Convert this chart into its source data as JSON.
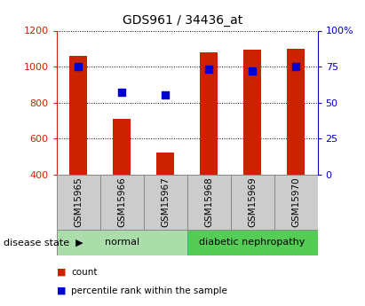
{
  "title": "GDS961 / 34436_at",
  "samples": [
    "GSM15965",
    "GSM15966",
    "GSM15967",
    "GSM15968",
    "GSM15969",
    "GSM15970"
  ],
  "counts": [
    1060,
    710,
    520,
    1080,
    1095,
    1100
  ],
  "percentiles": [
    75,
    57,
    55,
    73,
    72,
    75
  ],
  "ylim_left": [
    400,
    1200
  ],
  "ylim_right": [
    0,
    100
  ],
  "yticks_left": [
    400,
    600,
    800,
    1000,
    1200
  ],
  "yticks_right": [
    0,
    25,
    50,
    75,
    100
  ],
  "ytick_labels_right": [
    "0",
    "25",
    "50",
    "75",
    "100%"
  ],
  "bar_color": "#cc2200",
  "scatter_color": "#0000cc",
  "bar_bottom": 400,
  "groups": [
    {
      "label": "normal",
      "n": 3,
      "color": "#aaddaa"
    },
    {
      "label": "diabetic nephropathy",
      "n": 3,
      "color": "#55cc55"
    }
  ],
  "group_label_prefix": "disease state",
  "legend_items": [
    {
      "label": "count",
      "color": "#cc2200"
    },
    {
      "label": "percentile rank within the sample",
      "color": "#0000cc"
    }
  ],
  "background_color": "#ffffff",
  "plot_bg": "#ffffff",
  "tick_box_color": "#cccccc",
  "left_axis_color": "#cc2200",
  "right_axis_color": "#0000cc"
}
